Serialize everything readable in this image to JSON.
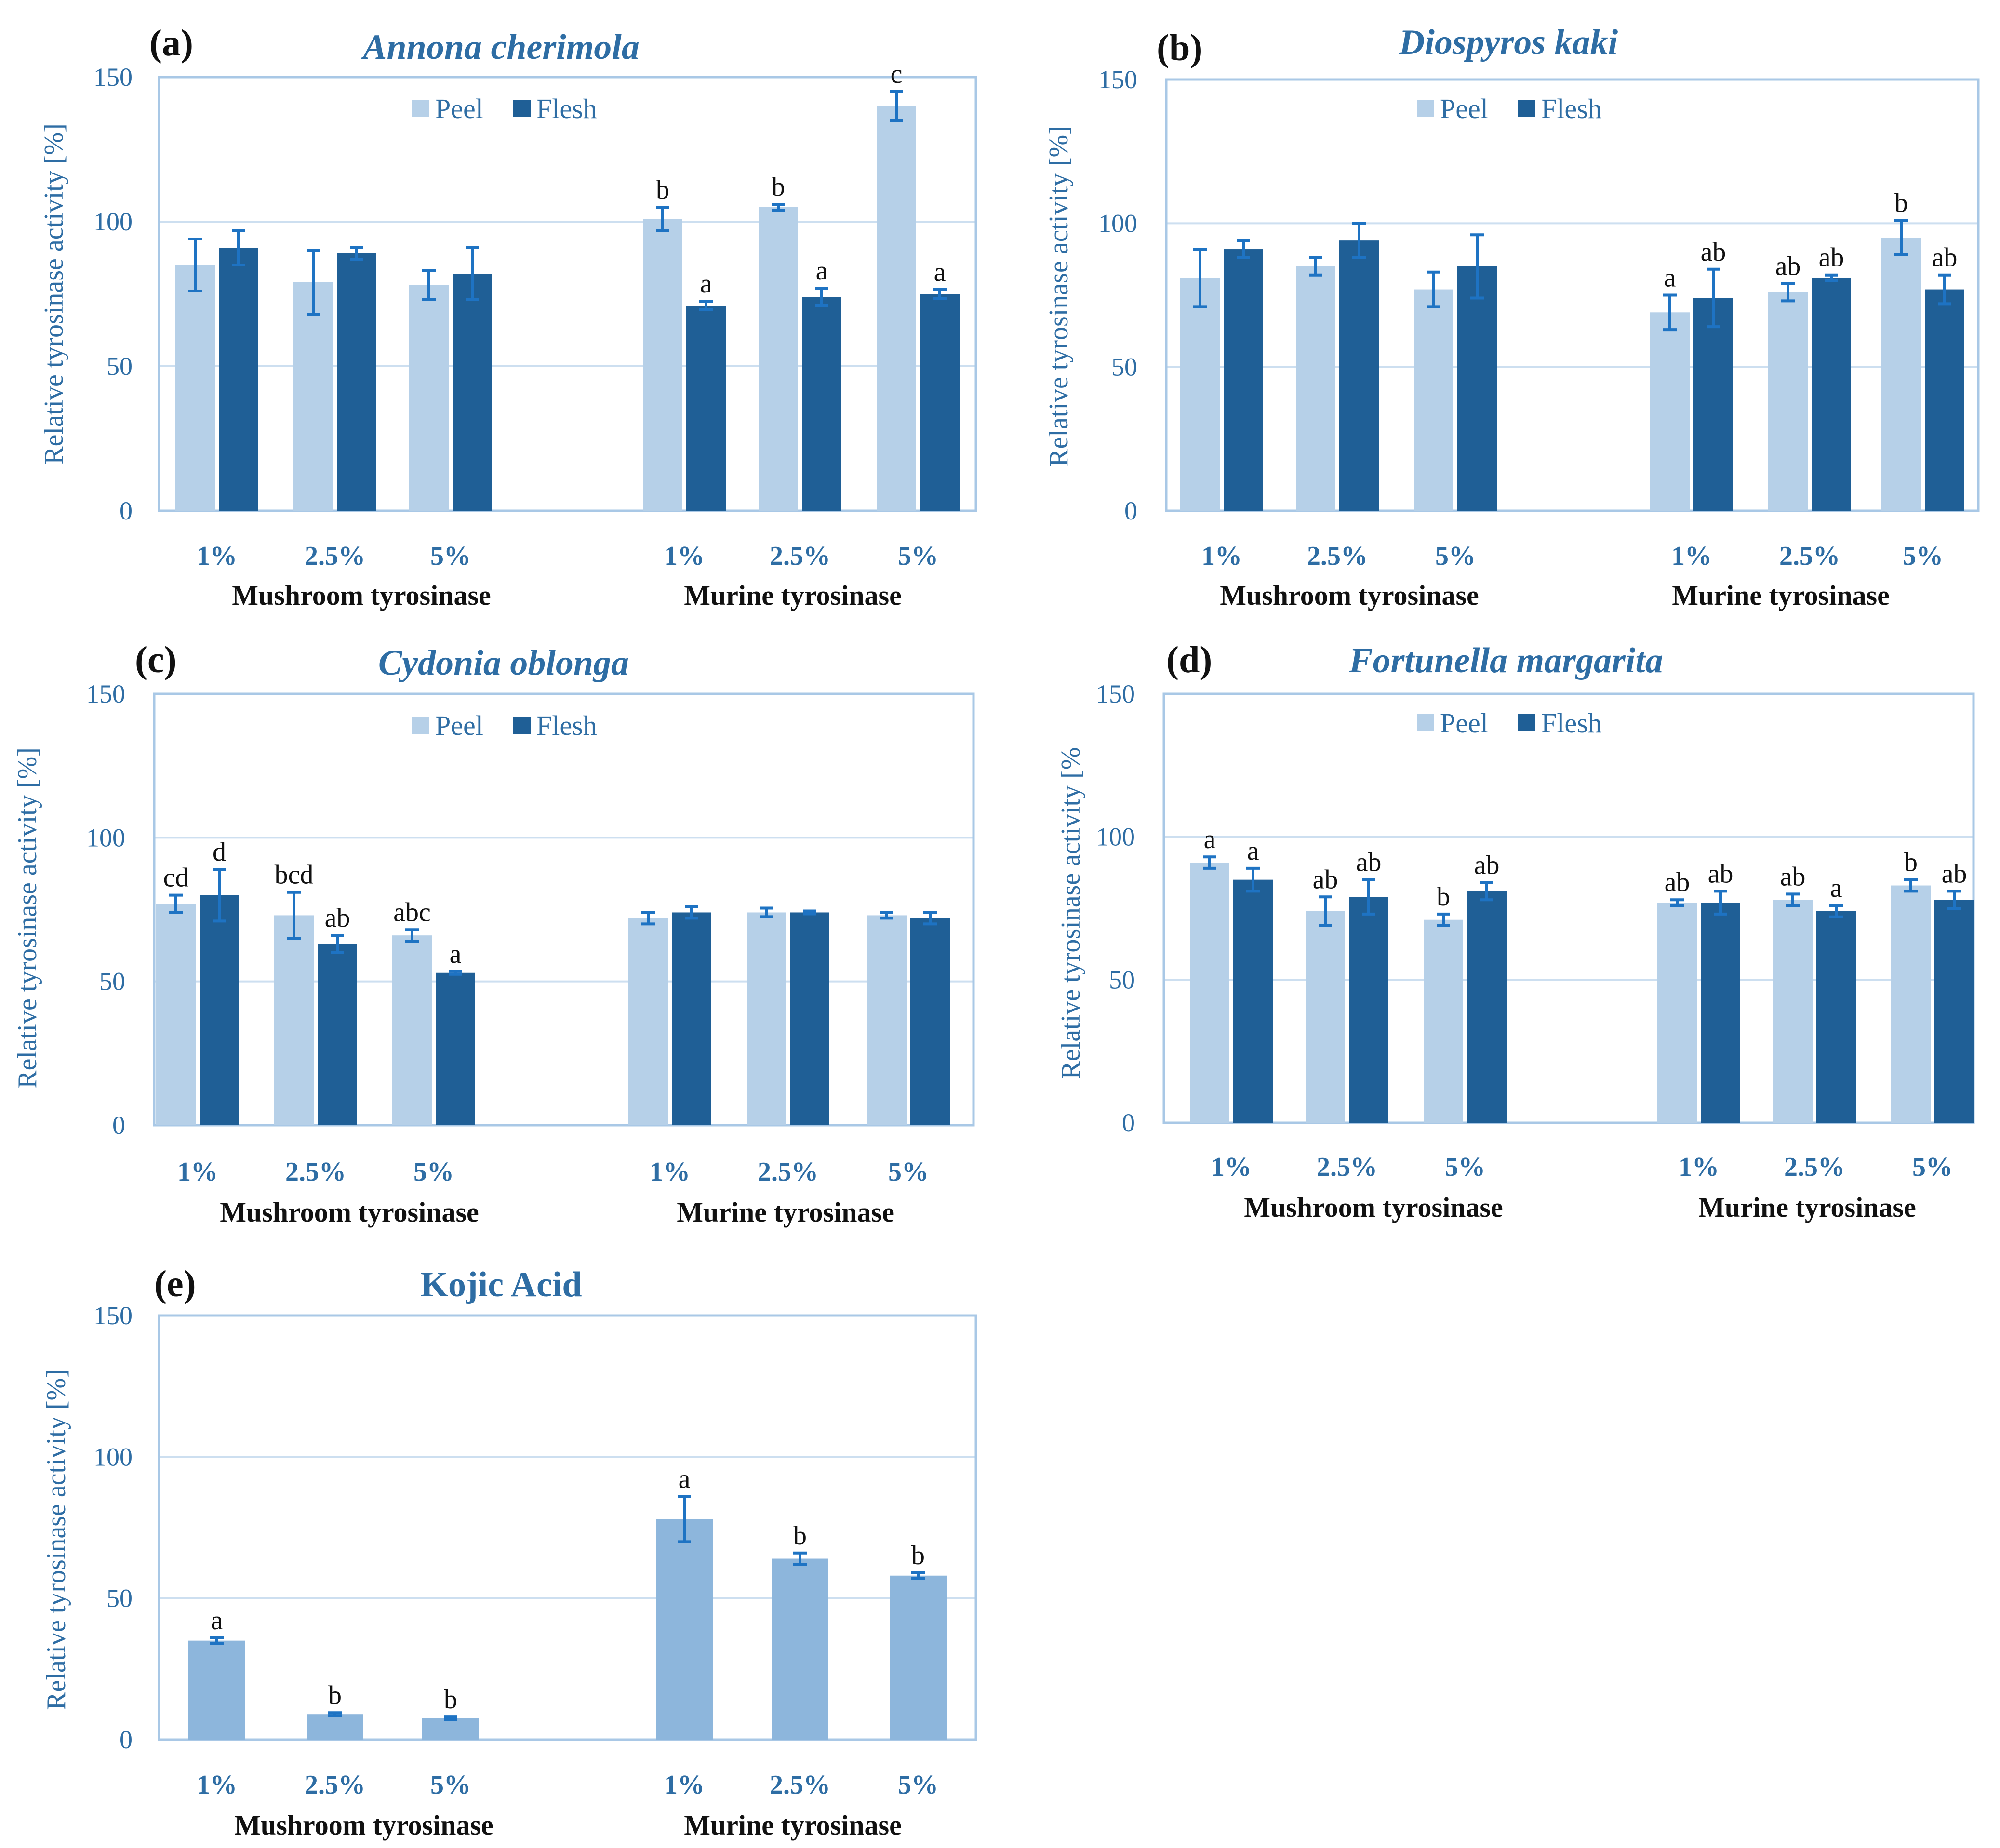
{
  "colors": {
    "peel": "#b6d0e8",
    "flesh": "#1f5f96",
    "single": "#8db6dc",
    "axis": "#a9c8e6",
    "grid": "#cddff0",
    "error": "#1e73c3",
    "text_blue": "#2e6da4"
  },
  "chart_data": [
    {
      "type": "bar",
      "panel": "(a)",
      "title": "Annona cherimola",
      "ylabel": "Relative tyrosinase activity [%]",
      "ylim": [
        0,
        150
      ],
      "yticks": [
        "0",
        "50",
        "100",
        "150"
      ],
      "categories": [
        "1%",
        "2.5%",
        "5%",
        "1%",
        "2.5%",
        "5%"
      ],
      "groups": [
        "Mushroom tyrosinase",
        "Murine tyrosinase"
      ],
      "legend": [
        "Peel",
        "Flesh"
      ],
      "series": [
        {
          "name": "Peel",
          "values": [
            85,
            79,
            78,
            101,
            105,
            140
          ],
          "errors": [
            9,
            11,
            5,
            4,
            1,
            5
          ],
          "labels": [
            "",
            "",
            "",
            "b",
            "b",
            "c"
          ]
        },
        {
          "name": "Flesh",
          "values": [
            91,
            89,
            82,
            71,
            74,
            75
          ],
          "errors": [
            6,
            2,
            9,
            1.5,
            3,
            1.5
          ],
          "labels": [
            "",
            "",
            "",
            "a",
            "a",
            "a"
          ]
        }
      ]
    },
    {
      "type": "bar",
      "panel": "(b)",
      "title": "Diospyros kaki",
      "ylabel": "Relative tyrosinase activity [%]",
      "ylim": [
        0,
        150
      ],
      "yticks": [
        "0",
        "50",
        "100",
        "150"
      ],
      "categories": [
        "1%",
        "2.5%",
        "5%",
        "1%",
        "2.5%",
        "5%"
      ],
      "groups": [
        "Mushroom tyrosinase",
        "Murine tyrosinase"
      ],
      "legend": [
        "Peel",
        "Flesh"
      ],
      "series": [
        {
          "name": "Peel",
          "values": [
            81,
            85,
            77,
            69,
            76,
            95
          ],
          "errors": [
            10,
            3,
            6,
            6,
            3,
            6
          ],
          "labels": [
            "",
            "",
            "",
            "a",
            "ab",
            "b"
          ]
        },
        {
          "name": "Flesh",
          "values": [
            91,
            94,
            85,
            74,
            81,
            77
          ],
          "errors": [
            3,
            6,
            11,
            10,
            1,
            5
          ],
          "labels": [
            "",
            "",
            "",
            "ab",
            "ab",
            "ab"
          ]
        }
      ]
    },
    {
      "type": "bar",
      "panel": "(c)",
      "title": "Cydonia oblonga",
      "ylabel": "Relative tyrosinase activity [%]",
      "ylim": [
        0,
        150
      ],
      "yticks": [
        "0",
        "50",
        "100",
        "150"
      ],
      "categories": [
        "1%",
        "2.5%",
        "5%",
        "1%",
        "2.5%",
        "5%"
      ],
      "groups": [
        "Mushroom tyrosinase",
        "Murine tyrosinase"
      ],
      "legend": [
        "Peel",
        "Flesh"
      ],
      "series": [
        {
          "name": "Peel",
          "values": [
            77,
            73,
            66,
            72,
            74,
            73
          ],
          "errors": [
            3,
            8,
            2,
            2,
            1.5,
            1
          ],
          "labels": [
            "cd",
            "bcd",
            "abc",
            "",
            "",
            ""
          ]
        },
        {
          "name": "Flesh",
          "values": [
            80,
            63,
            53,
            74,
            74,
            72
          ],
          "errors": [
            9,
            3,
            0.5,
            2,
            0.5,
            2
          ],
          "labels": [
            "d",
            "ab",
            "a",
            "",
            "",
            ""
          ]
        }
      ]
    },
    {
      "type": "bar",
      "panel": "(d)",
      "title": "Fortunella margarita",
      "ylabel": "Relative tyrosinase activity [%",
      "ylim": [
        0,
        150
      ],
      "yticks": [
        "0",
        "50",
        "100",
        "150"
      ],
      "categories": [
        "1%",
        "2.5%",
        "5%",
        "1%",
        "2.5%",
        "5%"
      ],
      "groups": [
        "Mushroom tyrosinase",
        "Murine tyrosinase"
      ],
      "legend": [
        "Peel",
        "Flesh"
      ],
      "series": [
        {
          "name": "Peel",
          "values": [
            91,
            74,
            71,
            77,
            78,
            83
          ],
          "errors": [
            2,
            5,
            2,
            1,
            2,
            2
          ],
          "labels": [
            "a",
            "ab",
            "b",
            "ab",
            "ab",
            "b"
          ]
        },
        {
          "name": "Flesh",
          "values": [
            85,
            79,
            81,
            77,
            74,
            78
          ],
          "errors": [
            4,
            6,
            3,
            4,
            2,
            3
          ],
          "labels": [
            "a",
            "ab",
            "ab",
            "ab",
            "a",
            "ab"
          ]
        }
      ]
    },
    {
      "type": "bar",
      "panel": "(e)",
      "title": "Kojic Acid",
      "ylabel": "Relative tyrosinase activity [%]",
      "ylim": [
        0,
        150
      ],
      "yticks": [
        "0",
        "50",
        "100",
        "150"
      ],
      "categories": [
        "1%",
        "2.5%",
        "5%",
        "1%",
        "2.5%",
        "5%"
      ],
      "groups": [
        "Mushroom tyrosinase",
        "Murine tyrosinase"
      ],
      "legend": [],
      "series": [
        {
          "name": "Kojic Acid",
          "values": [
            35,
            9,
            7.5,
            78,
            64,
            58
          ],
          "errors": [
            1,
            0.5,
            0.5,
            8,
            2,
            1
          ],
          "labels": [
            "a",
            "b",
            "b",
            "a",
            "b",
            "b"
          ]
        }
      ]
    }
  ]
}
